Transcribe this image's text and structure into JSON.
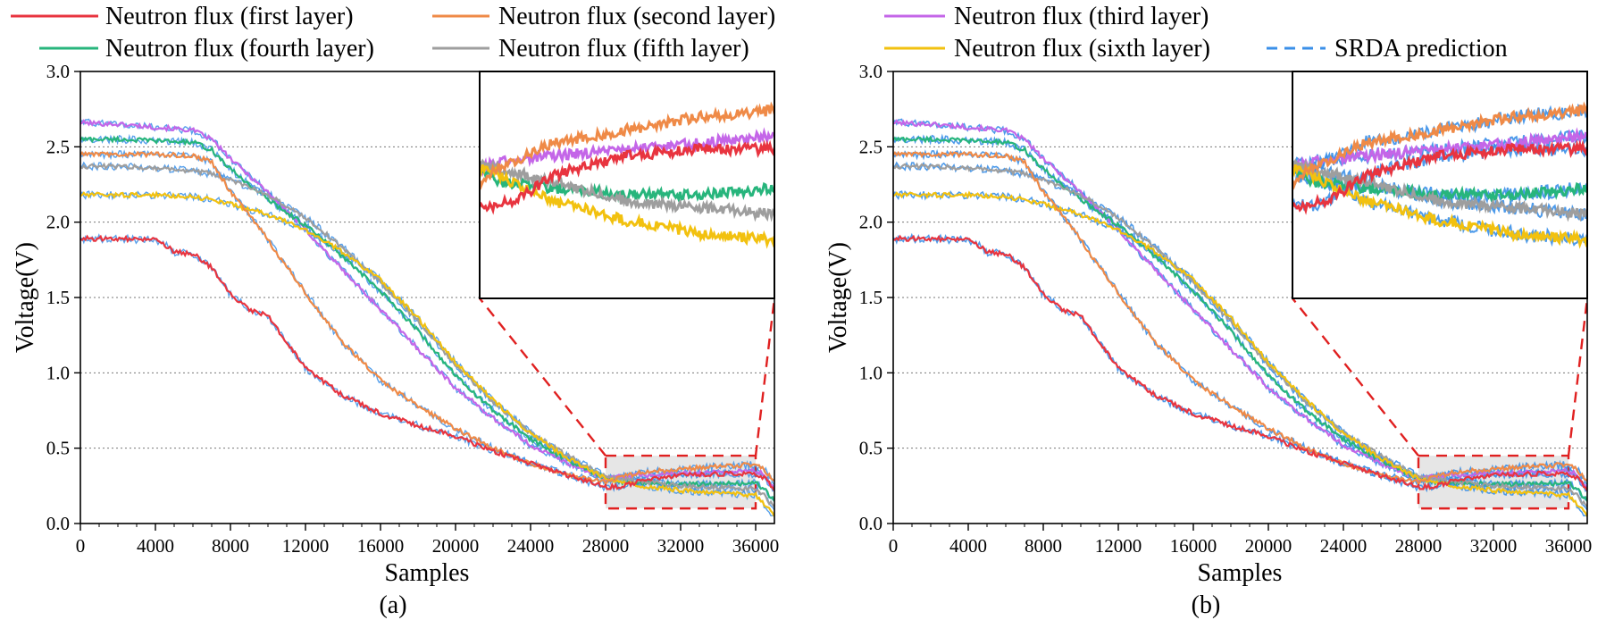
{
  "figure": {
    "panels": [
      {
        "caption": "(a)",
        "legend": [
          {
            "label": "Neutron flux (first layer)",
            "color": "#e8343f",
            "dashed": false
          },
          {
            "label": "Neutron flux (second layer)",
            "color": "#ef8a47",
            "dashed": false
          },
          {
            "label": "Neutron flux (fourth layer)",
            "color": "#27b57c",
            "dashed": false
          },
          {
            "label": "Neutron flux (fifth layer)",
            "color": "#9e9e9e",
            "dashed": false
          }
        ]
      },
      {
        "caption": "(b)",
        "legend": [
          {
            "label": "Neutron flux (third layer)",
            "color": "#c466e8",
            "dashed": false
          },
          {
            "label": "Neutron flux (sixth layer)",
            "color": "#f2c10f",
            "dashed": false
          },
          {
            "label": "SRDA prediction",
            "color": "#3a8fe8",
            "dashed": true
          }
        ]
      }
    ]
  },
  "chart_data": [
    {
      "type": "line",
      "title": "",
      "caption": "(a)",
      "xlabel": "Samples",
      "ylabel": "Voltage(V)",
      "xlim": [
        0,
        37000
      ],
      "ylim": [
        0,
        3.0
      ],
      "xticks": [
        0,
        4000,
        8000,
        12000,
        16000,
        20000,
        24000,
        28000,
        32000,
        36000
      ],
      "yticks": [
        "0.0",
        "0.5",
        "1.0",
        "1.5",
        "2.0",
        "2.5",
        "3.0"
      ],
      "grid": "horizontal dotted",
      "zoom_region": {
        "x": [
          28000,
          36000
        ],
        "y": [
          0.1,
          0.45
        ]
      },
      "series": [
        {
          "name": "Neutron flux (third layer)",
          "color": "#c466e8",
          "x": [
            0,
            2000,
            4000,
            6000,
            7000,
            8000,
            10000,
            12000,
            14000,
            16000,
            18000,
            20000,
            22000,
            24000,
            26000,
            28000,
            28500,
            30000,
            32000,
            34000,
            36000,
            36500,
            37000
          ],
          "y": [
            2.66,
            2.65,
            2.63,
            2.61,
            2.55,
            2.42,
            2.2,
            1.95,
            1.68,
            1.42,
            1.16,
            0.9,
            0.7,
            0.52,
            0.4,
            0.3,
            0.31,
            0.32,
            0.33,
            0.34,
            0.35,
            0.32,
            0.22
          ]
        },
        {
          "name": "Neutron flux (fourth layer)",
          "color": "#27b57c",
          "x": [
            0,
            2000,
            4000,
            6000,
            7000,
            8000,
            10000,
            12000,
            14000,
            16000,
            18000,
            20000,
            22000,
            24000,
            26000,
            28000,
            28500,
            30000,
            32000,
            34000,
            36000,
            36500,
            37000
          ],
          "y": [
            2.55,
            2.55,
            2.54,
            2.53,
            2.48,
            2.35,
            2.15,
            1.98,
            1.77,
            1.54,
            1.28,
            0.98,
            0.75,
            0.56,
            0.42,
            0.3,
            0.28,
            0.27,
            0.26,
            0.26,
            0.27,
            0.22,
            0.15
          ]
        },
        {
          "name": "Neutron flux (fifth layer)",
          "color": "#9e9e9e",
          "x": [
            0,
            2000,
            4000,
            6000,
            7000,
            8000,
            10000,
            12000,
            14000,
            16000,
            18000,
            20000,
            22000,
            24000,
            26000,
            28000,
            28500,
            30000,
            32000,
            34000,
            36000,
            36500,
            37000
          ],
          "y": [
            2.37,
            2.37,
            2.36,
            2.34,
            2.32,
            2.28,
            2.18,
            2.03,
            1.83,
            1.6,
            1.34,
            1.05,
            0.81,
            0.6,
            0.45,
            0.31,
            0.3,
            0.28,
            0.25,
            0.24,
            0.23,
            0.18,
            0.1
          ]
        },
        {
          "name": "Neutron flux (sixth layer)",
          "color": "#f2c10f",
          "x": [
            0,
            2000,
            4000,
            6000,
            7000,
            8000,
            10000,
            12000,
            14000,
            16000,
            18000,
            20000,
            22000,
            24000,
            26000,
            28000,
            28500,
            30000,
            32000,
            34000,
            36000,
            36500,
            37000
          ],
          "y": [
            2.18,
            2.18,
            2.18,
            2.17,
            2.15,
            2.12,
            2.05,
            1.95,
            1.8,
            1.62,
            1.36,
            1.07,
            0.82,
            0.6,
            0.43,
            0.3,
            0.29,
            0.25,
            0.22,
            0.2,
            0.19,
            0.12,
            0.05
          ]
        },
        {
          "name": "Neutron flux (second layer)",
          "color": "#ef8a47",
          "x": [
            0,
            2000,
            4000,
            6000,
            7000,
            8000,
            9000,
            10000,
            12000,
            14000,
            16000,
            18000,
            20000,
            22000,
            24000,
            26000,
            28000,
            28500,
            30000,
            32000,
            34000,
            36000,
            36500,
            37000
          ],
          "y": [
            2.45,
            2.45,
            2.45,
            2.44,
            2.4,
            2.2,
            2.05,
            1.88,
            1.53,
            1.2,
            0.95,
            0.78,
            0.63,
            0.5,
            0.4,
            0.32,
            0.28,
            0.3,
            0.34,
            0.36,
            0.38,
            0.39,
            0.35,
            0.27
          ]
        },
        {
          "name": "Neutron flux (first layer)",
          "color": "#e8343f",
          "x": [
            0,
            2000,
            4000,
            4500,
            5000,
            6000,
            7000,
            8000,
            9000,
            10000,
            11000,
            12000,
            14000,
            16000,
            18000,
            20000,
            22000,
            24000,
            26000,
            28000,
            29000,
            30000,
            32000,
            34000,
            36000,
            36500,
            37000
          ],
          "y": [
            1.89,
            1.89,
            1.88,
            1.85,
            1.8,
            1.79,
            1.7,
            1.52,
            1.42,
            1.38,
            1.2,
            1.03,
            0.85,
            0.73,
            0.65,
            0.58,
            0.48,
            0.4,
            0.32,
            0.24,
            0.25,
            0.29,
            0.32,
            0.33,
            0.33,
            0.3,
            0.22
          ]
        }
      ]
    },
    {
      "type": "line",
      "title": "",
      "caption": "(b)",
      "xlabel": "Samples",
      "ylabel": "Voltage(V)",
      "xlim": [
        0,
        37000
      ],
      "ylim": [
        0,
        3.0
      ],
      "xticks": [
        0,
        4000,
        8000,
        12000,
        16000,
        20000,
        24000,
        28000,
        32000,
        36000
      ],
      "yticks": [
        "0.0",
        "0.5",
        "1.0",
        "1.5",
        "2.0",
        "2.5",
        "3.0"
      ],
      "grid": "horizontal dotted",
      "zoom_region": {
        "x": [
          28000,
          36000
        ],
        "y": [
          0.1,
          0.45
        ]
      },
      "series": [
        {
          "name": "Neutron flux (third layer)",
          "color": "#c466e8",
          "x": [
            0,
            2000,
            4000,
            6000,
            7000,
            8000,
            10000,
            12000,
            14000,
            16000,
            18000,
            20000,
            22000,
            24000,
            26000,
            28000,
            28500,
            30000,
            32000,
            34000,
            36000,
            36500,
            37000
          ],
          "y": [
            2.66,
            2.65,
            2.63,
            2.61,
            2.55,
            2.42,
            2.2,
            1.95,
            1.68,
            1.42,
            1.16,
            0.9,
            0.7,
            0.52,
            0.4,
            0.3,
            0.31,
            0.32,
            0.33,
            0.34,
            0.35,
            0.32,
            0.22
          ]
        },
        {
          "name": "Neutron flux (fourth layer)",
          "color": "#27b57c",
          "x": [
            0,
            2000,
            4000,
            6000,
            7000,
            8000,
            10000,
            12000,
            14000,
            16000,
            18000,
            20000,
            22000,
            24000,
            26000,
            28000,
            28500,
            30000,
            32000,
            34000,
            36000,
            36500,
            37000
          ],
          "y": [
            2.55,
            2.55,
            2.54,
            2.53,
            2.48,
            2.35,
            2.15,
            1.98,
            1.77,
            1.54,
            1.28,
            0.98,
            0.75,
            0.56,
            0.42,
            0.3,
            0.28,
            0.27,
            0.26,
            0.26,
            0.27,
            0.22,
            0.15
          ]
        },
        {
          "name": "Neutron flux (fifth layer)",
          "color": "#9e9e9e",
          "x": [
            0,
            2000,
            4000,
            6000,
            7000,
            8000,
            10000,
            12000,
            14000,
            16000,
            18000,
            20000,
            22000,
            24000,
            26000,
            28000,
            28500,
            30000,
            32000,
            34000,
            36000,
            36500,
            37000
          ],
          "y": [
            2.37,
            2.37,
            2.36,
            2.34,
            2.32,
            2.28,
            2.18,
            2.03,
            1.83,
            1.6,
            1.34,
            1.05,
            0.81,
            0.6,
            0.45,
            0.31,
            0.3,
            0.28,
            0.25,
            0.24,
            0.23,
            0.18,
            0.1
          ]
        },
        {
          "name": "Neutron flux (sixth layer)",
          "color": "#f2c10f",
          "x": [
            0,
            2000,
            4000,
            6000,
            7000,
            8000,
            10000,
            12000,
            14000,
            16000,
            18000,
            20000,
            22000,
            24000,
            26000,
            28000,
            28500,
            30000,
            32000,
            34000,
            36000,
            36500,
            37000
          ],
          "y": [
            2.18,
            2.18,
            2.18,
            2.17,
            2.15,
            2.12,
            2.05,
            1.95,
            1.8,
            1.62,
            1.36,
            1.07,
            0.82,
            0.6,
            0.43,
            0.3,
            0.29,
            0.25,
            0.22,
            0.2,
            0.19,
            0.12,
            0.05
          ]
        },
        {
          "name": "Neutron flux (second layer)",
          "color": "#ef8a47",
          "x": [
            0,
            2000,
            4000,
            6000,
            7000,
            8000,
            9000,
            10000,
            12000,
            14000,
            16000,
            18000,
            20000,
            22000,
            24000,
            26000,
            28000,
            28500,
            30000,
            32000,
            34000,
            36000,
            36500,
            37000
          ],
          "y": [
            2.45,
            2.45,
            2.45,
            2.44,
            2.4,
            2.2,
            2.05,
            1.88,
            1.53,
            1.2,
            0.95,
            0.78,
            0.63,
            0.5,
            0.4,
            0.32,
            0.28,
            0.3,
            0.34,
            0.36,
            0.38,
            0.39,
            0.35,
            0.27
          ]
        },
        {
          "name": "Neutron flux (first layer)",
          "color": "#e8343f",
          "x": [
            0,
            2000,
            4000,
            4500,
            5000,
            6000,
            7000,
            8000,
            9000,
            10000,
            11000,
            12000,
            14000,
            16000,
            18000,
            20000,
            22000,
            24000,
            26000,
            28000,
            29000,
            30000,
            32000,
            34000,
            36000,
            36500,
            37000
          ],
          "y": [
            1.89,
            1.89,
            1.88,
            1.85,
            1.8,
            1.79,
            1.7,
            1.52,
            1.42,
            1.38,
            1.2,
            1.03,
            0.85,
            0.73,
            0.65,
            0.58,
            0.48,
            0.4,
            0.32,
            0.24,
            0.25,
            0.29,
            0.32,
            0.33,
            0.33,
            0.3,
            0.22
          ]
        },
        {
          "name": "SRDA prediction",
          "color": "#3a8fe8",
          "dashed": true,
          "note": "overlaps each of the six measured curves",
          "x": [],
          "y": []
        }
      ]
    }
  ]
}
